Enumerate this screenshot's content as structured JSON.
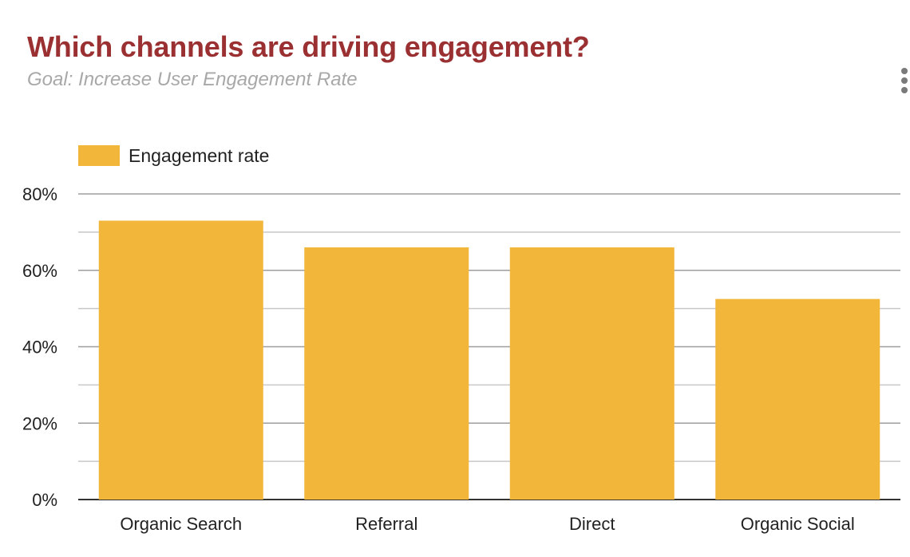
{
  "header": {
    "title": "Which channels are driving engagement?",
    "subtitle": "Goal: Increase User Engagement Rate"
  },
  "menu": {
    "icon": "more-vertical-icon"
  },
  "colors": {
    "bar": "#f2b73a",
    "title": "#9a3032",
    "subtitle": "#a8a8a8"
  },
  "chart_data": {
    "type": "bar",
    "title": "Which channels are driving engagement?",
    "subtitle": "Goal: Increase User Engagement Rate",
    "categories": [
      "Organic Search",
      "Referral",
      "Direct",
      "Organic Social"
    ],
    "series": [
      {
        "name": "Engagement rate",
        "values": [
          0.73,
          0.66,
          0.66,
          0.525
        ]
      }
    ],
    "y_tick_labels": [
      "0%",
      "20%",
      "40%",
      "60%",
      "80%"
    ],
    "ylim": [
      0,
      0.8
    ],
    "xlabel": "",
    "ylabel": "",
    "grid": true,
    "legend": "top-left"
  }
}
